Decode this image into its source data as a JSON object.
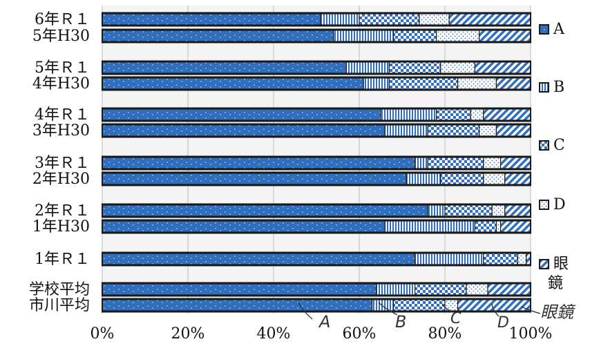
{
  "chart_data": {
    "type": "bar",
    "stacked": true,
    "orientation": "horizontal",
    "percent": true,
    "title": "",
    "xlabel": "",
    "ylabel": "",
    "xlim": [
      0,
      100
    ],
    "grid": true,
    "legend_position": "right",
    "x_tick_labels": [
      "0%",
      "20%",
      "40%",
      "60%",
      "80%",
      "100%"
    ],
    "categories": [
      "6年Ｒ１",
      "5年H30",
      "5年Ｒ１",
      "4年H30",
      "4年Ｒ１",
      "3年H30",
      "3年Ｒ１",
      "2年H30",
      "2年Ｒ１",
      "1年H30",
      "1年Ｒ１",
      "学校平均",
      "市川平均"
    ],
    "series": [
      {
        "name": "A",
        "values": [
          51,
          54,
          57,
          61,
          65,
          66,
          73,
          71,
          76,
          66,
          73,
          64,
          63
        ]
      },
      {
        "name": "B",
        "values": [
          9,
          14,
          10,
          6,
          13,
          10,
          3,
          8,
          4,
          21,
          16,
          9,
          5
        ]
      },
      {
        "name": "C",
        "values": [
          14,
          10,
          12,
          16,
          8,
          12,
          13,
          10,
          11,
          5,
          8,
          12,
          12
        ]
      },
      {
        "name": "D",
        "values": [
          7,
          10,
          8,
          9,
          3,
          4,
          4,
          5,
          3,
          1,
          2,
          5,
          3
        ]
      },
      {
        "name": "眼鏡",
        "values": [
          19,
          12,
          13,
          8,
          11,
          8,
          7,
          6,
          6,
          7,
          1,
          10,
          17
        ]
      }
    ],
    "colors": [
      "#2f6fbd",
      "#2f6fbd",
      "#2f6fbd",
      "#2f6fbd",
      "#2f6fbd"
    ],
    "patterns": [
      "dotted-fill",
      "vertical-stripes",
      "checker",
      "white-dots",
      "diagonal-stripes"
    ],
    "handwritten_annotations": [
      "A",
      "B",
      "C",
      "D",
      "眼鏡"
    ]
  }
}
